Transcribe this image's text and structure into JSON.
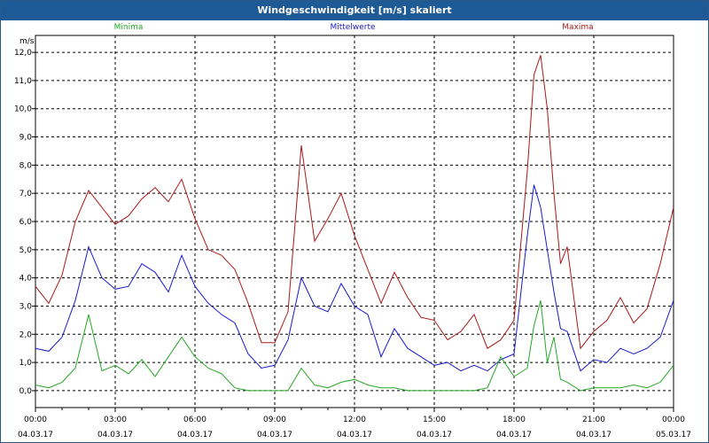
{
  "window": {
    "title": "Windgeschwindigkeit [m/s] skaliert"
  },
  "chart_data": {
    "type": "line",
    "title": "Windgeschwindigkeit [m/s] skaliert",
    "ylabel": "m/s",
    "xlabel": "",
    "ylim": [
      -0.6,
      12.6
    ],
    "y_ticks": [
      "0,0",
      "1,0",
      "2,0",
      "3,0",
      "4,0",
      "5,0",
      "6,0",
      "7,0",
      "8,0",
      "9,0",
      "10,0",
      "11,0",
      "12,0"
    ],
    "x_ticks": [
      {
        "time": "00:00",
        "date": "04.03.17"
      },
      {
        "time": "03:00",
        "date": "04.03.17"
      },
      {
        "time": "06:00",
        "date": "04.03.17"
      },
      {
        "time": "09:00",
        "date": "04.03.17"
      },
      {
        "time": "12:00",
        "date": "04.03.17"
      },
      {
        "time": "15:00",
        "date": "04.03.17"
      },
      {
        "time": "18:00",
        "date": "04.03.17"
      },
      {
        "time": "21:00",
        "date": "04.03.17"
      },
      {
        "time": "00:00",
        "date": "05.03.17"
      }
    ],
    "grid": true,
    "legend": "top",
    "colors": {
      "Minima": "#22a822",
      "Mittelwerte": "#1a1acc",
      "Maxima": "#aa1818"
    },
    "x_hours": [
      0,
      0.5,
      1,
      1.5,
      2,
      2.5,
      3,
      3.5,
      4,
      4.5,
      5,
      5.5,
      6,
      6.5,
      7,
      7.5,
      8,
      8.5,
      9,
      9.5,
      10,
      10.5,
      11,
      11.5,
      12,
      12.5,
      13,
      13.5,
      14,
      14.5,
      15,
      15.5,
      16,
      16.5,
      17,
      17.5,
      18,
      18.5,
      18.75,
      19,
      19.25,
      19.5,
      19.75,
      20,
      20.5,
      21,
      21.5,
      22,
      22.5,
      23,
      23.5,
      24
    ],
    "series": [
      {
        "name": "Maxima",
        "values": [
          3.7,
          3.1,
          4.1,
          6.0,
          7.1,
          6.5,
          5.9,
          6.2,
          6.8,
          7.2,
          6.7,
          7.5,
          6.1,
          5.0,
          4.8,
          4.3,
          3.1,
          1.7,
          1.7,
          2.8,
          8.7,
          5.3,
          6.1,
          7.0,
          5.5,
          4.3,
          3.1,
          4.2,
          3.3,
          2.6,
          2.5,
          1.8,
          2.1,
          2.7,
          1.5,
          1.8,
          2.5,
          7.8,
          11.2,
          11.9,
          10.0,
          7.0,
          4.5,
          5.1,
          1.5,
          2.1,
          2.5,
          3.3,
          2.4,
          2.9,
          4.5,
          6.5
        ]
      },
      {
        "name": "Mittelwerte",
        "values": [
          1.5,
          1.4,
          1.9,
          3.2,
          5.1,
          4.0,
          3.6,
          3.7,
          4.5,
          4.2,
          3.5,
          4.8,
          3.7,
          3.1,
          2.7,
          2.4,
          1.3,
          0.8,
          0.9,
          1.8,
          4.0,
          3.0,
          2.8,
          3.8,
          3.0,
          2.7,
          1.2,
          2.2,
          1.5,
          1.2,
          0.9,
          1.0,
          0.7,
          0.9,
          0.7,
          1.1,
          1.3,
          5.5,
          7.3,
          6.5,
          5.0,
          3.5,
          2.2,
          2.1,
          0.7,
          1.1,
          1.0,
          1.5,
          1.3,
          1.5,
          1.9,
          3.2
        ]
      },
      {
        "name": "Minima",
        "values": [
          0.2,
          0.1,
          0.3,
          0.8,
          2.7,
          0.7,
          0.9,
          0.6,
          1.1,
          0.5,
          1.2,
          1.9,
          1.2,
          0.8,
          0.6,
          0.1,
          0.0,
          0.0,
          0.0,
          0.0,
          0.8,
          0.2,
          0.1,
          0.3,
          0.4,
          0.2,
          0.1,
          0.1,
          0.0,
          0.0,
          0.0,
          0.0,
          0.0,
          0.0,
          0.1,
          1.2,
          0.5,
          0.8,
          2.3,
          3.2,
          1.0,
          1.9,
          0.4,
          0.3,
          0.0,
          0.1,
          0.1,
          0.1,
          0.2,
          0.1,
          0.3,
          0.9
        ]
      }
    ]
  }
}
